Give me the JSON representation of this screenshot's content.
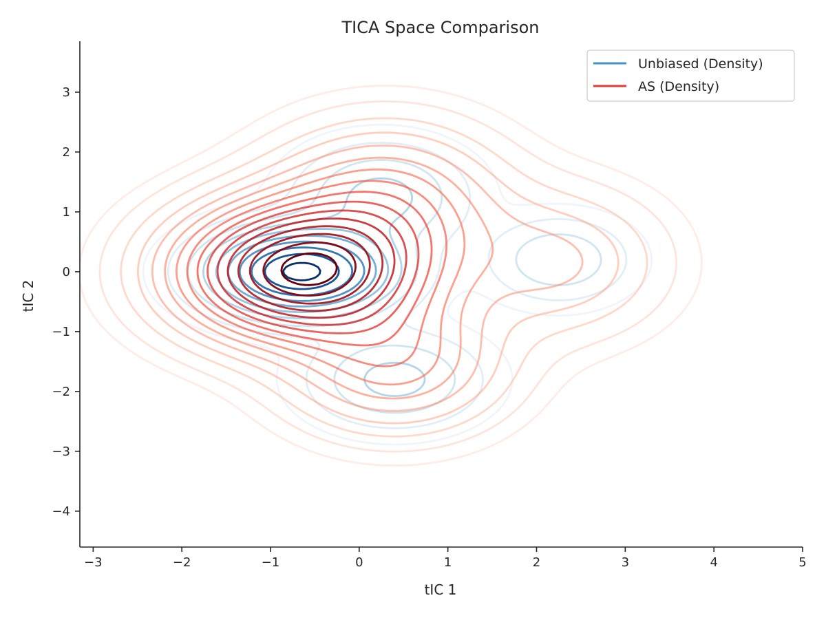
{
  "chart_data": {
    "type": "contour",
    "title": "TICA Space Comparison",
    "xlabel": "tIC 1",
    "ylabel": "tIC 2",
    "xlim": [
      -3.15,
      5.0
    ],
    "ylim": [
      -4.6,
      3.85
    ],
    "xticks": [
      -3,
      -2,
      -1,
      0,
      1,
      2,
      3,
      4,
      5
    ],
    "yticks": [
      -4,
      -3,
      -2,
      -1,
      0,
      1,
      2,
      3
    ],
    "xtick_labels": [
      "−3",
      "−2",
      "−1",
      "0",
      "1",
      "2",
      "3",
      "4",
      "5"
    ],
    "ytick_labels": [
      "−4",
      "−3",
      "−2",
      "−1",
      "0",
      "1",
      "2",
      "3"
    ],
    "grid": false,
    "legend_position": "top-right",
    "series": [
      {
        "name": "Unbiased (Density)",
        "colormap": "Blues",
        "legend_color": "#4292c6",
        "levels": 10,
        "components": [
          {
            "mx": -0.65,
            "my": 0.0,
            "sx": 0.6,
            "sy": 0.42,
            "w": 1.0
          },
          {
            "mx": 0.25,
            "my": 1.25,
            "sx": 0.55,
            "sy": 0.5,
            "w": 0.22
          },
          {
            "mx": 0.4,
            "my": -1.8,
            "sx": 0.55,
            "sy": 0.45,
            "w": 0.22
          },
          {
            "mx": 2.25,
            "my": 0.2,
            "sx": 0.45,
            "sy": 0.4,
            "w": 0.18
          }
        ]
      },
      {
        "name": "AS (Density)",
        "colormap": "Reds",
        "legend_color": "#e8382f",
        "levels": 16,
        "components": [
          {
            "mx": -0.65,
            "my": 0.0,
            "sx": 0.85,
            "sy": 0.7,
            "w": 1.0
          },
          {
            "mx": 0.3,
            "my": 1.1,
            "sx": 0.8,
            "sy": 0.8,
            "w": 0.3
          },
          {
            "mx": 0.4,
            "my": -1.5,
            "sx": 0.75,
            "sy": 0.7,
            "w": 0.28
          },
          {
            "mx": 2.2,
            "my": 0.15,
            "sx": 0.75,
            "sy": 0.75,
            "w": 0.15
          },
          {
            "mx": 3.9,
            "my": -3.6,
            "sx": 0.35,
            "sy": 0.3,
            "w": 0.003
          }
        ]
      }
    ]
  }
}
